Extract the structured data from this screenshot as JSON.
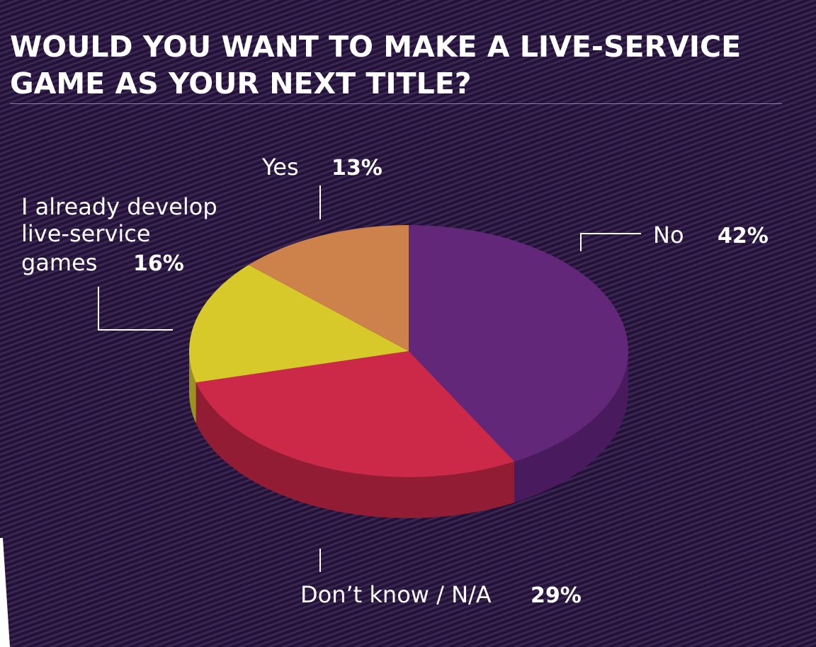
{
  "title": {
    "line1": "WOULD YOU WANT TO MAKE A LIVE-SERVICE",
    "line2": "GAME AS YOUR NEXT TITLE?"
  },
  "chart_data": {
    "type": "pie",
    "title": "WOULD YOU WANT TO MAKE A LIVE-SERVICE GAME AS YOUR NEXT TITLE?",
    "slices": [
      {
        "label": "No",
        "value": 42,
        "value_label": "42%",
        "color": "#63277a",
        "side_color": "#4a1a5e"
      },
      {
        "label": "Don’t know / N/A",
        "value": 29,
        "value_label": "29%",
        "color": "#cc2848",
        "side_color": "#921c34"
      },
      {
        "label": "I already develop live-service games",
        "label_lines": [
          "I already develop",
          "live-service",
          "games"
        ],
        "value": 16,
        "value_label": "16%",
        "color": "#d8c92a",
        "side_color": "#9c9120"
      },
      {
        "label": "Yes",
        "value": 13,
        "value_label": "13%",
        "color": "#cd814b",
        "side_color": "#9a5f36"
      }
    ],
    "style": "3d"
  }
}
